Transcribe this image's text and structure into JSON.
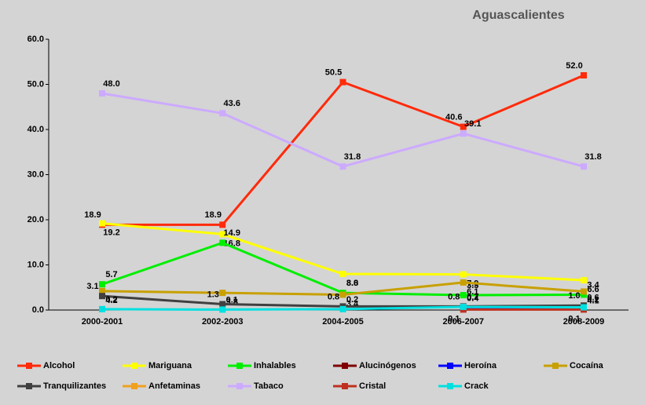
{
  "chart_data": {
    "type": "line",
    "title": "Aguascalientes",
    "categories": [
      "2000-2001",
      "2002-2003",
      "2004-2005",
      "2006-2007",
      "2008-2009"
    ],
    "ylim": [
      0,
      60
    ],
    "yticks": [
      {
        "value": 0,
        "label": "0.0"
      },
      {
        "value": 10,
        "label": "10.0"
      },
      {
        "value": 20,
        "label": "20.0"
      },
      {
        "value": 30,
        "label": "30.0"
      },
      {
        "value": 40,
        "label": "40.0"
      },
      {
        "value": 50,
        "label": "50.0"
      },
      {
        "value": 60,
        "label": "60.0"
      }
    ],
    "series": [
      {
        "name": "Alcohol",
        "color": "#ff2a0a",
        "values": [
          18.9,
          18.9,
          50.5,
          40.6,
          52.0
        ],
        "value_labels": [
          "18.9",
          "18.9",
          "50.5",
          "40.6",
          "52.0"
        ]
      },
      {
        "name": "Mariguana",
        "color": "#ffff00",
        "values": [
          19.2,
          16.8,
          8.0,
          7.9,
          6.6
        ],
        "value_labels": [
          "19.2",
          "16.8",
          "8.0",
          "7.9",
          "6.6"
        ]
      },
      {
        "name": "Inhalables",
        "color": "#00ee00",
        "values": [
          5.7,
          14.9,
          3.8,
          3.3,
          3.4
        ],
        "value_labels": [
          "5.7",
          "14.9",
          "3.8",
          "3.3",
          "3.4"
        ]
      },
      {
        "name": "Alucinógenos",
        "color": "#800000",
        "values": [
          null,
          null,
          null,
          null,
          null
        ],
        "value_labels": [
          null,
          null,
          null,
          null,
          null
        ]
      },
      {
        "name": "Heroína",
        "color": "#0000ff",
        "values": [
          null,
          null,
          null,
          0.4,
          0.2
        ],
        "value_labels": [
          null,
          null,
          null,
          "0.4",
          "0.2"
        ]
      },
      {
        "name": "Cocaína",
        "color": "#c8a000",
        "values": [
          4.2,
          3.8,
          3.4,
          6.1,
          4.1
        ],
        "value_labels": [
          "4.2",
          "3.8",
          "3.4",
          "6.1",
          "4.1"
        ]
      },
      {
        "name": "Tranquilizantes",
        "color": "#404040",
        "values": [
          3.1,
          1.3,
          0.8,
          0.8,
          1.0
        ],
        "value_labels": [
          "3.1",
          "1.3",
          "0.8",
          "0.8",
          "1.0"
        ]
      },
      {
        "name": "Anfetaminas",
        "color": "#f0a020",
        "values": [
          null,
          null,
          null,
          null,
          null
        ],
        "value_labels": [
          null,
          null,
          null,
          null,
          null
        ]
      },
      {
        "name": "Tabaco",
        "color": "#ccaaff",
        "values": [
          48.0,
          43.6,
          31.8,
          39.1,
          31.8
        ],
        "value_labels": [
          "48.0",
          "43.6",
          "31.8",
          "39.1",
          "31.8"
        ]
      },
      {
        "name": "Cristal",
        "color": "#c03020",
        "values": [
          null,
          null,
          null,
          0.1,
          0.1
        ],
        "value_labels": [
          null,
          null,
          null,
          "0.1",
          "0.1"
        ]
      },
      {
        "name": "Crack",
        "color": "#00e0e0",
        "values": [
          0.2,
          0.1,
          0.2,
          0.7,
          0.6
        ],
        "value_labels": [
          "0.2",
          "0.1",
          "0.2",
          "0.7",
          "0.6"
        ]
      }
    ]
  }
}
